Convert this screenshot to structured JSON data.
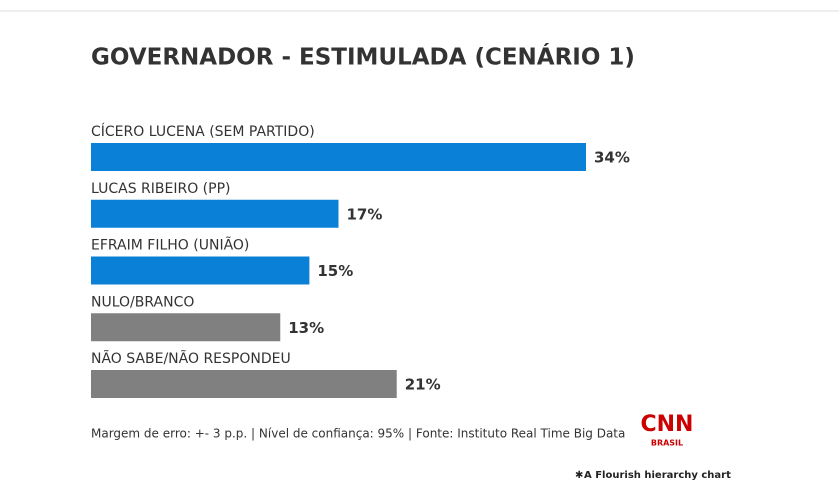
{
  "chart_data": {
    "type": "bar",
    "orientation": "horizontal",
    "title": "GOVERNADOR - ESTIMULADA (CENÁRIO 1)",
    "categories": [
      "CÍCERO LUCENA (SEM PARTIDO)",
      "LUCAS RIBEIRO (PP)",
      "EFRAIM FILHO (UNIÃO)",
      "NULO/BRANCO",
      "NÃO SABE/NÃO RESPONDEU"
    ],
    "values": [
      34,
      17,
      15,
      13,
      21
    ],
    "value_labels": [
      "34%",
      "17%",
      "15%",
      "13%",
      "21%"
    ],
    "colors": [
      "#0a80d6",
      "#0a80d6",
      "#0a80d6",
      "#808080",
      "#808080"
    ],
    "footnote": "Margem de erro: +- 3 p.p. | Nível de confiança: 95% | Fonte: Instituto Real Time Big Data"
  },
  "logo": {
    "name": "CNN",
    "sub": "BRASIL"
  },
  "credit": "A Flourish hierarchy chart"
}
